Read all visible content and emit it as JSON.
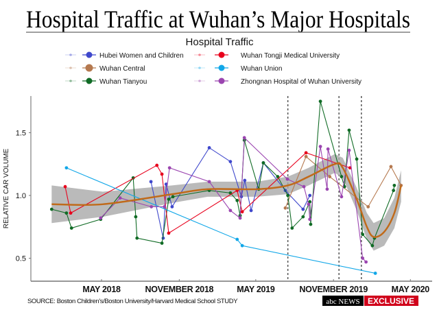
{
  "title": "Hospital Traffic at Wuhan’s Major Hospitals",
  "source": "SOURCE: Boston Children's/Boston University/Harvard Medical School STUDY",
  "badge": {
    "network": "abc NEWS",
    "tag": "EXCLUSIVE",
    "tag_color": "#d0021b"
  },
  "chart_data": {
    "type": "line",
    "title": "Hospital Traffic at Wuhan’s Major Hospitals",
    "legend_title": "Hospital Traffic",
    "legend_position": "top",
    "xlabel": "",
    "ylabel": "RELATIVE CAR VOLUME",
    "x_type": "date",
    "xlim": [
      "2017-12-15",
      "2020-05-25"
    ],
    "ylim": [
      0.35,
      1.8
    ],
    "grid": false,
    "x_ticks": [
      {
        "date": "2018-05-01",
        "label": "MAY 2018"
      },
      {
        "date": "2018-11-01",
        "label": "NOVEMBER 2018"
      },
      {
        "date": "2019-05-01",
        "label": "MAY 2019"
      },
      {
        "date": "2019-11-01",
        "label": "NOVEMBER 2019"
      },
      {
        "date": "2020-05-01",
        "label": "MAY 2020"
      }
    ],
    "y_ticks": [
      {
        "value": 0.5,
        "label": "0.5"
      },
      {
        "value": 1.0,
        "label": "1.0"
      },
      {
        "value": 1.5,
        "label": "1.5"
      }
    ],
    "vertical_lines": [
      "2019-07-16",
      "2019-11-14",
      "2020-01-06"
    ],
    "series": [
      {
        "name": "Hubei Women and Children",
        "color": "#3f48cc",
        "points": [
          [
            "2018-08-26",
            1.11
          ],
          [
            "2018-09-24",
            0.66
          ],
          [
            "2018-10-01",
            1.09
          ],
          [
            "2018-10-15",
            0.91
          ],
          [
            "2019-01-11",
            1.38
          ],
          [
            "2019-03-02",
            1.27
          ],
          [
            "2019-03-28",
            0.99
          ],
          [
            "2019-04-05",
            1.12
          ],
          [
            "2019-04-20",
            0.88
          ],
          [
            "2019-05-19",
            1.26
          ],
          [
            "2019-07-10",
            1.04
          ],
          [
            "2019-08-21",
            0.89
          ],
          [
            "2019-09-06",
            1.0
          ]
        ]
      },
      {
        "name": "Wuhan Central",
        "color": "#b5794f",
        "points": [
          [
            "2019-07-10",
            0.9
          ],
          [
            "2019-08-28",
            1.31
          ],
          [
            "2019-10-23",
            1.15
          ],
          [
            "2020-01-22",
            0.91
          ],
          [
            "2020-03-16",
            1.23
          ],
          [
            "2020-04-09",
            1.08
          ]
        ]
      },
      {
        "name": "Wuhan Tianyou",
        "color": "#106b25",
        "points": [
          [
            "2018-01-03",
            0.89
          ],
          [
            "2018-02-07",
            0.86
          ],
          [
            "2018-02-19",
            0.74
          ],
          [
            "2018-04-29",
            0.81
          ],
          [
            "2018-07-15",
            1.14
          ],
          [
            "2018-07-21",
            0.83
          ],
          [
            "2018-07-24",
            0.66
          ],
          [
            "2018-09-21",
            0.62
          ],
          [
            "2018-10-07",
            0.97
          ],
          [
            "2018-10-17",
            0.99
          ],
          [
            "2019-01-11",
            1.04
          ],
          [
            "2019-03-02",
            1.02
          ],
          [
            "2019-03-18",
            0.96
          ],
          [
            "2019-03-25",
            0.84
          ],
          [
            "2019-04-04",
            1.44
          ],
          [
            "2019-05-08",
            1.05
          ],
          [
            "2019-05-19",
            1.26
          ],
          [
            "2019-06-22",
            1.15
          ],
          [
            "2019-07-16",
            1.0
          ],
          [
            "2019-07-26",
            0.74
          ],
          [
            "2019-08-21",
            0.83
          ],
          [
            "2019-09-06",
            0.95
          ],
          [
            "2019-09-08",
            0.77
          ],
          [
            "2019-10-01",
            1.75
          ],
          [
            "2019-11-20",
            1.15
          ],
          [
            "2019-11-27",
            1.07
          ],
          [
            "2019-12-08",
            1.52
          ],
          [
            "2019-12-26",
            1.29
          ],
          [
            "2020-01-09",
            0.69
          ],
          [
            "2020-02-01",
            0.6
          ],
          [
            "2020-02-06",
            0.66
          ],
          [
            "2020-03-22",
            1.04
          ],
          [
            "2020-03-24",
            1.08
          ]
        ]
      },
      {
        "name": "Wuhan Tongji Medical University",
        "color": "#e8001c",
        "points": [
          [
            "2018-02-04",
            1.07
          ],
          [
            "2018-02-17",
            0.86
          ],
          [
            "2018-09-09",
            1.24
          ],
          [
            "2018-09-21",
            1.17
          ],
          [
            "2018-10-07",
            0.7
          ],
          [
            "2019-03-18",
            1.04
          ],
          [
            "2019-03-30",
            0.87
          ],
          [
            "2019-08-28",
            1.34
          ],
          [
            "2019-12-10",
            1.22
          ]
        ]
      },
      {
        "name": "Wuhan Union",
        "color": "#11a7e8",
        "points": [
          [
            "2018-02-07",
            1.22
          ],
          [
            "2019-03-18",
            0.65
          ],
          [
            "2019-03-30",
            0.6
          ],
          [
            "2020-02-08",
            0.38
          ]
        ]
      },
      {
        "name": "Zhongnan Hospital of Wuhan University",
        "color": "#9b45b0",
        "points": [
          [
            "2018-04-29",
            0.82
          ],
          [
            "2018-06-14",
            0.98
          ],
          [
            "2018-08-27",
            0.91
          ],
          [
            "2018-09-27",
            0.91
          ],
          [
            "2018-10-09",
            1.22
          ],
          [
            "2019-01-11",
            1.11
          ],
          [
            "2019-03-02",
            0.88
          ],
          [
            "2019-03-25",
            0.82
          ],
          [
            "2019-04-04",
            1.46
          ],
          [
            "2019-07-15",
            1.13
          ],
          [
            "2019-08-23",
            1.07
          ],
          [
            "2019-09-03",
            0.93
          ],
          [
            "2019-09-06",
            0.81
          ],
          [
            "2019-10-01",
            1.39
          ],
          [
            "2019-10-17",
            1.05
          ],
          [
            "2019-10-19",
            1.37
          ],
          [
            "2019-11-20",
            0.99
          ],
          [
            "2019-12-08",
            1.36
          ],
          [
            "2020-01-09",
            0.5
          ],
          [
            "2020-01-17",
            0.47
          ]
        ]
      }
    ],
    "trend": {
      "color": "#c06a1a",
      "band_color": "#a9a9a9",
      "points": [
        [
          "2018-01-03",
          0.93,
          0.78,
          1.08
        ],
        [
          "2018-05-04",
          0.93,
          0.83,
          1.03
        ],
        [
          "2018-10-15",
          1.01,
          0.94,
          1.08
        ],
        [
          "2019-01-07",
          1.05,
          0.99,
          1.11
        ],
        [
          "2019-05-04",
          1.05,
          0.99,
          1.11
        ],
        [
          "2019-07-16",
          1.08,
          1.01,
          1.15
        ],
        [
          "2019-09-03",
          1.15,
          1.08,
          1.22
        ],
        [
          "2019-11-04",
          1.25,
          1.18,
          1.33
        ],
        [
          "2019-11-23",
          1.22,
          1.14,
          1.3
        ],
        [
          "2019-12-26",
          0.97,
          0.88,
          1.06
        ],
        [
          "2020-01-19",
          0.75,
          0.65,
          0.86
        ],
        [
          "2020-02-04",
          0.67,
          0.56,
          0.78
        ],
        [
          "2020-02-29",
          0.71,
          0.6,
          0.82
        ],
        [
          "2020-03-24",
          0.86,
          0.74,
          0.98
        ],
        [
          "2020-04-09",
          1.08,
          0.95,
          1.2
        ]
      ]
    }
  }
}
